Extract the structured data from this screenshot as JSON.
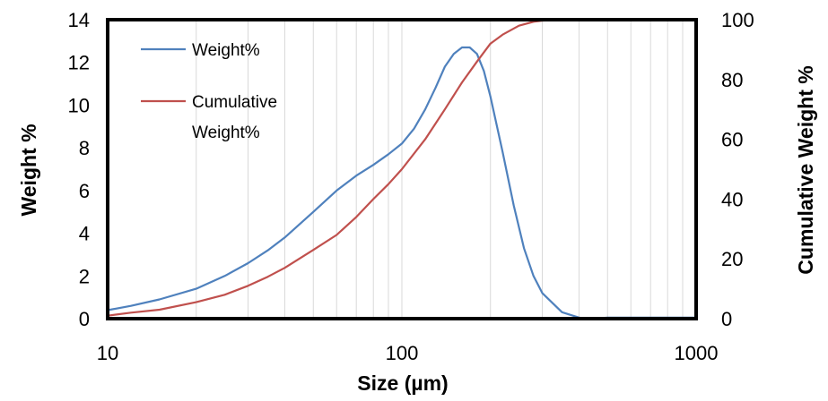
{
  "chart_data": {
    "type": "line",
    "xlabel": "Size (µm)",
    "ylabel": "Weight %",
    "y2label": "Cumulative Weight %",
    "x_scale": "log",
    "xlim": [
      10,
      1000
    ],
    "ylim": [
      0,
      14
    ],
    "y2lim": [
      0,
      100
    ],
    "x_ticks": [
      "10",
      "100",
      "1000"
    ],
    "y_ticks": [
      "0",
      "2",
      "4",
      "6",
      "8",
      "10",
      "12",
      "14"
    ],
    "y2_ticks": [
      "0",
      "20",
      "40",
      "60",
      "80",
      "100"
    ],
    "grid": "vertical minor gridlines",
    "legend_position": "top-left",
    "series": [
      {
        "name": "Weight%",
        "axis": "left",
        "color": "#4f81bd",
        "x": [
          10,
          12,
          15,
          20,
          25,
          30,
          35,
          40,
          50,
          60,
          70,
          80,
          90,
          100,
          110,
          120,
          130,
          140,
          150,
          160,
          170,
          180,
          190,
          200,
          220,
          240,
          260,
          280,
          300,
          350,
          400,
          420,
          450,
          500,
          600,
          800,
          1000
        ],
        "y": [
          0.4,
          0.6,
          0.9,
          1.4,
          2.0,
          2.6,
          3.2,
          3.8,
          5.0,
          6.0,
          6.7,
          7.2,
          7.7,
          8.2,
          8.9,
          9.8,
          10.8,
          11.8,
          12.4,
          12.7,
          12.7,
          12.4,
          11.6,
          10.4,
          7.8,
          5.3,
          3.3,
          2.0,
          1.2,
          0.3,
          0.05,
          0.0,
          0.0,
          0.05,
          0.05,
          0.05,
          0.05
        ]
      },
      {
        "name": "Cumulative Weight%",
        "axis": "right",
        "color": "#c0504d",
        "x": [
          10,
          12,
          15,
          20,
          25,
          30,
          35,
          40,
          50,
          60,
          70,
          80,
          90,
          100,
          120,
          140,
          160,
          180,
          200,
          220,
          250,
          280,
          300,
          350,
          400,
          500,
          700,
          1000
        ],
        "y": [
          1,
          2,
          3,
          5.5,
          8,
          11,
          14,
          17,
          23,
          28,
          34,
          40,
          45,
          50,
          60,
          70,
          79,
          86,
          92,
          95,
          98,
          99.3,
          99.7,
          100,
          100,
          100,
          100,
          100
        ]
      }
    ],
    "legend": [
      {
        "lines": [
          "Weight%"
        ],
        "color": "#4f81bd"
      },
      {
        "lines": [
          "Cumulative",
          "Weight%"
        ],
        "color": "#c0504d"
      }
    ]
  }
}
